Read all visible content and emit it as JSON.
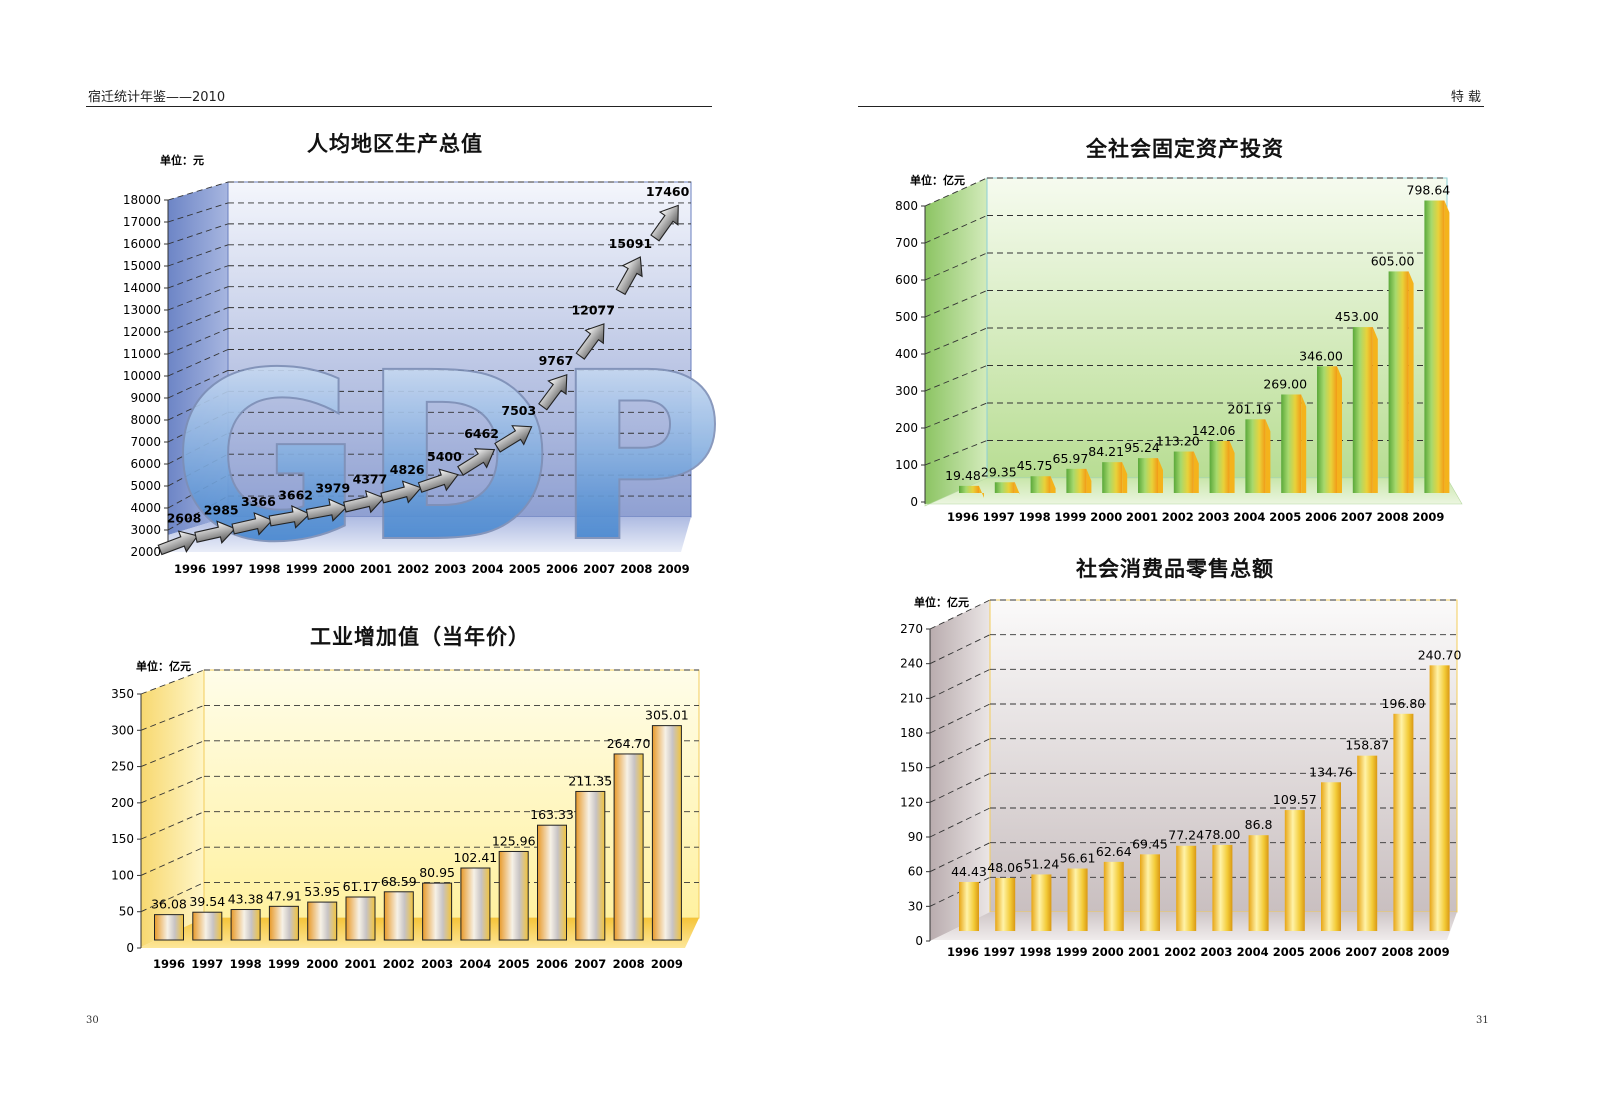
{
  "header": {
    "left_title": "宿迁统计年鉴——2010",
    "right_title": "特 载",
    "left_page": "30",
    "right_page": "31"
  },
  "colors": {
    "gdp_wall": "#8fa4d4",
    "invest_wall": "#c6e3a6",
    "industry_wall": "#fff2a8",
    "retail_wall": "#d8d0d0",
    "green_bar": "#7cc04a",
    "orange_bar": "#f2a31b",
    "gold_bar": "#f0c419"
  },
  "chart_data": [
    {
      "id": "gdp",
      "type": "line",
      "title": "人均地区生产总值",
      "unit": "单位：元",
      "categories": [
        "1996",
        "1997",
        "1998",
        "1999",
        "2000",
        "2001",
        "2002",
        "2003",
        "2004",
        "2005",
        "2006",
        "2007",
        "2008",
        "2009"
      ],
      "values": [
        2608,
        2985,
        3366,
        3662,
        3979,
        4377,
        4826,
        5400,
        6462,
        7503,
        9767,
        12077,
        15091,
        17460
      ],
      "yticks": [
        2000,
        3000,
        4000,
        5000,
        6000,
        7000,
        8000,
        9000,
        10000,
        11000,
        12000,
        13000,
        14000,
        15000,
        16000,
        17000,
        18000
      ],
      "ylim": [
        2000,
        18000
      ],
      "watermark": "GDP",
      "grid": true
    },
    {
      "id": "investment",
      "type": "bar",
      "title": "全社会固定资产投资",
      "unit": "单位：亿元",
      "categories": [
        "1996",
        "1997",
        "1998",
        "1999",
        "2000",
        "2001",
        "2002",
        "2003",
        "2004",
        "2005",
        "2006",
        "2007",
        "2008",
        "2009"
      ],
      "values": [
        19.48,
        29.35,
        45.75,
        65.97,
        84.21,
        95.24,
        113.2,
        142.06,
        201.19,
        269.0,
        346.0,
        453.0,
        605.0,
        798.64
      ],
      "labels": [
        "19.48",
        "29.35",
        "45.75",
        "65.97",
        "84.21",
        "95.24",
        "113.20",
        "142.06",
        "201.19",
        "269.00",
        "346.00",
        "453.00",
        "605.00",
        "798.64"
      ],
      "yticks": [
        0,
        100,
        200,
        300,
        400,
        500,
        600,
        700,
        800
      ],
      "ylim": [
        0,
        800
      ],
      "grid": true
    },
    {
      "id": "industry",
      "type": "bar",
      "title": "工业增加值（当年价）",
      "unit": "单位：亿元",
      "categories": [
        "1996",
        "1997",
        "1998",
        "1999",
        "2000",
        "2001",
        "2002",
        "2003",
        "2004",
        "2005",
        "2006",
        "2007",
        "2008",
        "2009"
      ],
      "values": [
        36.08,
        39.54,
        43.38,
        47.91,
        53.95,
        61.17,
        68.59,
        80.95,
        102.41,
        125.96,
        163.33,
        211.35,
        264.7,
        305.01
      ],
      "labels": [
        "36.08",
        "39.54",
        "43.38",
        "47.91",
        "53.95",
        "61.17",
        "68.59",
        "80.95",
        "102.41",
        "125.96",
        "163.33",
        "211.35",
        "264.70",
        "305.01"
      ],
      "yticks": [
        0,
        50,
        100,
        150,
        200,
        250,
        300,
        350
      ],
      "ylim": [
        0,
        350
      ],
      "grid": true
    },
    {
      "id": "retail",
      "type": "bar",
      "title": "社会消费品零售总额",
      "unit": "单位：亿元",
      "categories": [
        "1996",
        "1997",
        "1998",
        "1999",
        "2000",
        "2001",
        "2002",
        "2003",
        "2004",
        "2005",
        "2006",
        "2007",
        "2008",
        "2009"
      ],
      "values": [
        44.43,
        48.06,
        51.24,
        56.61,
        62.64,
        69.45,
        77.24,
        78.0,
        86.8,
        109.57,
        134.76,
        158.87,
        196.8,
        240.7
      ],
      "labels": [
        "44.43",
        "48.06",
        "51.24",
        "56.61",
        "62.64",
        "69.45",
        "77.24",
        "78.00",
        "86.8",
        "109.57",
        "134.76",
        "158.87",
        "196.80",
        "240.70"
      ],
      "yticks": [
        0,
        30,
        60,
        90,
        120,
        150,
        180,
        210,
        240,
        270
      ],
      "ylim": [
        0,
        270
      ],
      "grid": true
    }
  ]
}
